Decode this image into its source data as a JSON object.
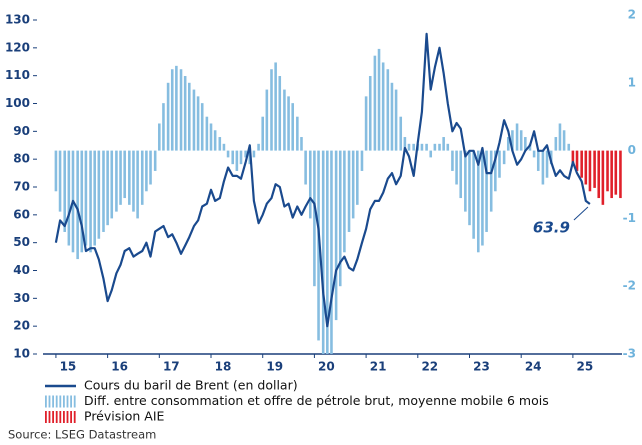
{
  "chart_data": {
    "type": "combo",
    "xlim": [
      2014.75,
      2025.95
    ],
    "xticks": [
      {
        "value": 2015,
        "label": "15"
      },
      {
        "value": 2016,
        "label": "16"
      },
      {
        "value": 2017,
        "label": "17"
      },
      {
        "value": 2018,
        "label": "18"
      },
      {
        "value": 2019,
        "label": "19"
      },
      {
        "value": 2020,
        "label": "20"
      },
      {
        "value": 2021,
        "label": "21"
      },
      {
        "value": 2022,
        "label": "22"
      },
      {
        "value": 2023,
        "label": "23"
      },
      {
        "value": 2024,
        "label": "24"
      },
      {
        "value": 2025,
        "label": "25"
      }
    ],
    "ylim": [
      10,
      131.8
    ],
    "yticks": [
      10,
      20,
      30,
      40,
      50,
      60,
      70,
      80,
      90,
      100,
      110,
      120,
      130
    ],
    "y2lim": [
      -3,
      2
    ],
    "y2ticks": [
      -3,
      -2,
      -1,
      0,
      1,
      2
    ],
    "series": [
      {
        "name": "Cours du baril de Brent (en dollar)",
        "type": "line",
        "color": "#1a4a8e",
        "x": [
          2015.0,
          2015.08,
          2015.17,
          2015.25,
          2015.33,
          2015.42,
          2015.5,
          2015.58,
          2015.67,
          2015.75,
          2015.83,
          2015.92,
          2016.0,
          2016.08,
          2016.17,
          2016.25,
          2016.33,
          2016.42,
          2016.5,
          2016.58,
          2016.67,
          2016.75,
          2016.83,
          2016.92,
          2017.0,
          2017.08,
          2017.17,
          2017.25,
          2017.33,
          2017.42,
          2017.5,
          2017.58,
          2017.67,
          2017.75,
          2017.83,
          2017.92,
          2018.0,
          2018.08,
          2018.17,
          2018.25,
          2018.33,
          2018.42,
          2018.5,
          2018.58,
          2018.67,
          2018.75,
          2018.83,
          2018.92,
          2019.0,
          2019.08,
          2019.17,
          2019.25,
          2019.33,
          2019.42,
          2019.5,
          2019.58,
          2019.67,
          2019.75,
          2019.83,
          2019.92,
          2020.0,
          2020.08,
          2020.17,
          2020.25,
          2020.33,
          2020.42,
          2020.5,
          2020.58,
          2020.67,
          2020.75,
          2020.83,
          2020.92,
          2021.0,
          2021.08,
          2021.17,
          2021.25,
          2021.33,
          2021.42,
          2021.5,
          2021.58,
          2021.67,
          2021.75,
          2021.83,
          2021.92,
          2022.0,
          2022.08,
          2022.17,
          2022.25,
          2022.33,
          2022.42,
          2022.5,
          2022.58,
          2022.67,
          2022.75,
          2022.83,
          2022.92,
          2023.0,
          2023.08,
          2023.17,
          2023.25,
          2023.33,
          2023.42,
          2023.5,
          2023.58,
          2023.67,
          2023.75,
          2023.83,
          2023.92,
          2024.0,
          2024.08,
          2024.17,
          2024.25,
          2024.33,
          2024.42,
          2024.5,
          2024.58,
          2024.67,
          2024.75,
          2024.83,
          2024.92,
          2025.0,
          2025.08,
          2025.17,
          2025.25,
          2025.33
        ],
        "values": [
          50,
          58,
          56,
          60,
          65,
          62,
          56,
          47,
          48,
          48,
          44,
          37,
          29,
          33,
          39,
          42,
          47,
          48,
          45,
          46,
          47,
          50,
          45,
          54,
          55,
          56,
          52,
          53,
          50,
          46,
          49,
          52,
          56,
          58,
          63,
          64,
          69,
          65,
          66,
          72,
          77,
          74,
          74,
          73,
          79,
          85,
          65,
          57,
          60,
          64,
          66,
          71,
          70,
          63,
          64,
          59,
          63,
          60,
          63,
          66,
          64,
          55,
          32,
          20,
          30,
          40,
          43,
          45,
          41,
          40,
          44,
          50,
          55,
          62,
          65,
          65,
          68,
          73,
          75,
          71,
          74,
          84,
          81,
          74,
          86,
          97,
          125,
          105,
          113,
          120,
          111,
          100,
          90,
          93,
          91,
          81,
          83,
          83,
          78,
          84,
          75,
          75,
          80,
          86,
          94,
          90,
          83,
          78,
          80,
          83,
          85,
          90,
          83,
          83,
          85,
          79,
          74,
          76,
          74,
          73,
          79,
          75,
          72,
          65,
          63.9
        ]
      },
      {
        "name": "Diff. entre consommation et offre de pétrole brut, moyenne mobile 6 mois",
        "type": "bar",
        "axis": "y2",
        "color": "#86bde0",
        "x": [
          2015.0,
          2015.08,
          2015.17,
          2015.25,
          2015.33,
          2015.42,
          2015.5,
          2015.58,
          2015.67,
          2015.75,
          2015.83,
          2015.92,
          2016.0,
          2016.08,
          2016.17,
          2016.25,
          2016.33,
          2016.42,
          2016.5,
          2016.58,
          2016.67,
          2016.75,
          2016.83,
          2016.92,
          2017.0,
          2017.08,
          2017.17,
          2017.25,
          2017.33,
          2017.42,
          2017.5,
          2017.58,
          2017.67,
          2017.75,
          2017.83,
          2017.92,
          2018.0,
          2018.08,
          2018.17,
          2018.25,
          2018.33,
          2018.42,
          2018.5,
          2018.58,
          2018.67,
          2018.75,
          2018.83,
          2018.92,
          2019.0,
          2019.08,
          2019.17,
          2019.25,
          2019.33,
          2019.42,
          2019.5,
          2019.58,
          2019.67,
          2019.75,
          2019.83,
          2019.92,
          2020.0,
          2020.08,
          2020.17,
          2020.25,
          2020.33,
          2020.42,
          2020.5,
          2020.58,
          2020.67,
          2020.75,
          2020.83,
          2020.92,
          2021.0,
          2021.08,
          2021.17,
          2021.25,
          2021.33,
          2021.42,
          2021.5,
          2021.58,
          2021.67,
          2021.75,
          2021.83,
          2021.92,
          2022.0,
          2022.08,
          2022.17,
          2022.25,
          2022.33,
          2022.42,
          2022.5,
          2022.58,
          2022.67,
          2022.75,
          2022.83,
          2022.92,
          2023.0,
          2023.08,
          2023.17,
          2023.25,
          2023.33,
          2023.42,
          2023.5,
          2023.58,
          2023.67,
          2023.75,
          2023.83,
          2023.92,
          2024.0,
          2024.08,
          2024.17,
          2024.25,
          2024.33,
          2024.42,
          2024.5,
          2024.58,
          2024.67,
          2024.75,
          2024.83,
          2024.92
        ],
        "values": [
          -0.6,
          -0.9,
          -1.2,
          -1.4,
          -1.5,
          -1.6,
          -1.5,
          -1.4,
          -1.5,
          -1.4,
          -1.3,
          -1.2,
          -1.1,
          -1.0,
          -0.9,
          -0.8,
          -0.7,
          -0.8,
          -0.9,
          -1.0,
          -0.8,
          -0.6,
          -0.5,
          -0.3,
          0.4,
          0.7,
          1.0,
          1.2,
          1.25,
          1.2,
          1.1,
          1.0,
          0.9,
          0.8,
          0.7,
          0.5,
          0.4,
          0.3,
          0.2,
          0.1,
          -0.1,
          -0.2,
          -0.3,
          -0.2,
          -0.1,
          -0.2,
          -0.1,
          0.1,
          0.5,
          0.9,
          1.2,
          1.3,
          1.1,
          0.9,
          0.8,
          0.7,
          0.5,
          0.2,
          -0.5,
          -1.0,
          -2.0,
          -2.8,
          -3.0,
          -3.0,
          -3.0,
          -2.5,
          -2.0,
          -1.5,
          -1.2,
          -1.0,
          -0.8,
          -0.3,
          0.8,
          1.1,
          1.4,
          1.5,
          1.3,
          1.2,
          1.0,
          0.9,
          0.5,
          0.2,
          0.1,
          0.1,
          0.1,
          0.1,
          0.1,
          -0.1,
          0.1,
          0.1,
          0.2,
          0.1,
          -0.3,
          -0.5,
          -0.7,
          -0.9,
          -1.1,
          -1.3,
          -1.5,
          -1.4,
          -1.2,
          -0.9,
          -0.6,
          -0.4,
          -0.2,
          0.2,
          0.3,
          0.4,
          0.3,
          0.2,
          0.1,
          -0.1,
          -0.3,
          -0.5,
          -0.4,
          -0.2,
          0.2,
          0.4,
          0.3,
          0.1
        ]
      },
      {
        "name": "Prévision AIE",
        "type": "bar",
        "axis": "y2",
        "color": "#e0202a",
        "x": [
          2025.0,
          2025.08,
          2025.17,
          2025.25,
          2025.33,
          2025.42,
          2025.5,
          2025.58,
          2025.67,
          2025.75,
          2025.83,
          2025.92
        ],
        "values": [
          -0.2,
          -0.3,
          -0.4,
          -0.5,
          -0.6,
          -0.55,
          -0.7,
          -0.8,
          -0.6,
          -0.7,
          -0.65,
          -0.7
        ]
      }
    ],
    "annotations": [
      {
        "text": "63.9"
      }
    ],
    "source": "Source: LSEG Datastream"
  }
}
